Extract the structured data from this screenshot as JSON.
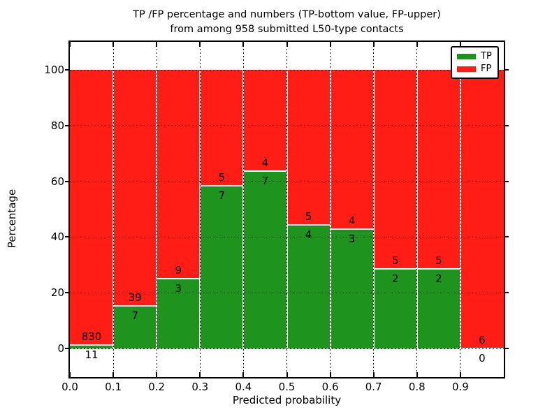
{
  "chart_data": {
    "type": "bar",
    "subtype": "stacked-percentage-histogram",
    "title_line1": "TP /FP percentage and numbers (TP-bottom value, FP-upper)",
    "title_line2": "from among 958 submitted L50-type contacts",
    "xlabel": "Predicted probability",
    "ylabel": "Percentage",
    "total_contacts": 958,
    "bin_edges": [
      0.0,
      0.1,
      0.2,
      0.3,
      0.4,
      0.5,
      0.6,
      0.7,
      0.8,
      0.9,
      1.0
    ],
    "categories": [
      "0.0-0.1",
      "0.1-0.2",
      "0.2-0.3",
      "0.3-0.4",
      "0.4-0.5",
      "0.5-0.6",
      "0.6-0.7",
      "0.7-0.8",
      "0.8-0.9",
      "0.9-1.0"
    ],
    "series": [
      {
        "name": "TP",
        "color": "#1e941e",
        "counts": [
          11,
          7,
          3,
          7,
          7,
          4,
          3,
          2,
          2,
          0
        ]
      },
      {
        "name": "FP",
        "color": "#ff1d15",
        "counts": [
          830,
          39,
          9,
          5,
          4,
          5,
          4,
          5,
          5,
          6
        ]
      }
    ],
    "tp_percent": [
      1.31,
      15.22,
      25.0,
      58.33,
      63.64,
      44.44,
      42.86,
      28.57,
      28.57,
      0.0
    ],
    "x_tick_labels": [
      "0.0",
      "0.1",
      "0.2",
      "0.3",
      "0.4",
      "0.5",
      "0.6",
      "0.7",
      "0.8",
      "0.9"
    ],
    "y_tick_labels": [
      "0",
      "20",
      "40",
      "60",
      "80",
      "100"
    ],
    "y_tick_values": [
      0,
      20,
      40,
      60,
      80,
      100
    ],
    "xlim": [
      0.0,
      1.0
    ],
    "ylim": [
      -10.3,
      110.0
    ],
    "grid": true,
    "bar_edge_color": "#ffffff",
    "legend": {
      "position": "upper right",
      "entries": [
        {
          "label": "TP",
          "color": "#1e941e"
        },
        {
          "label": "FP",
          "color": "#ff1d15"
        }
      ]
    }
  }
}
